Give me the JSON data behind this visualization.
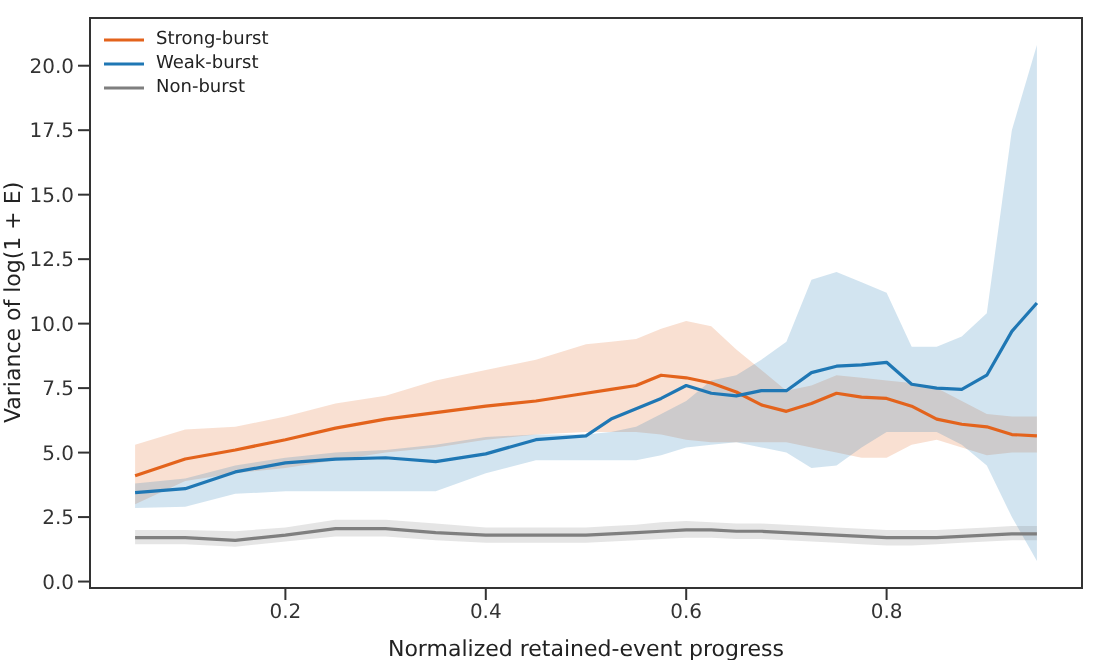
{
  "chart_data": {
    "type": "line",
    "xlabel": "Normalized retained-event progress",
    "ylabel": "Variance of log(1 + E)",
    "x": [
      0.05,
      0.1,
      0.15,
      0.2,
      0.25,
      0.3,
      0.35,
      0.4,
      0.45,
      0.5,
      0.525,
      0.55,
      0.575,
      0.6,
      0.625,
      0.65,
      0.675,
      0.7,
      0.725,
      0.75,
      0.775,
      0.8,
      0.825,
      0.85,
      0.875,
      0.9,
      0.925,
      0.95
    ],
    "series": [
      {
        "name": "Strong-burst",
        "color": "#e3631c",
        "values": [
          4.1,
          4.75,
          5.1,
          5.5,
          5.95,
          6.3,
          6.55,
          6.8,
          7.0,
          7.3,
          7.45,
          7.6,
          8.0,
          7.9,
          7.7,
          7.35,
          6.85,
          6.6,
          6.9,
          7.3,
          7.15,
          7.1,
          6.8,
          6.3,
          6.1,
          6.0,
          5.7,
          5.65
        ],
        "lower": [
          3.0,
          3.9,
          4.2,
          4.4,
          4.7,
          5.0,
          5.2,
          5.5,
          5.7,
          5.8,
          5.8,
          5.8,
          5.7,
          5.5,
          5.4,
          5.4,
          5.4,
          5.4,
          5.2,
          5.0,
          4.8,
          4.8,
          5.3,
          5.5,
          5.2,
          4.9,
          5.0,
          5.0
        ],
        "upper": [
          5.3,
          5.9,
          6.0,
          6.4,
          6.9,
          7.2,
          7.8,
          8.2,
          8.6,
          9.2,
          9.3,
          9.4,
          9.8,
          10.1,
          9.9,
          9.0,
          8.2,
          7.4,
          7.6,
          8.0,
          7.9,
          7.8,
          7.7,
          7.5,
          7.0,
          6.5,
          6.4,
          6.4
        ]
      },
      {
        "name": "Weak-burst",
        "color": "#1f77b4",
        "values": [
          3.45,
          3.6,
          4.25,
          4.6,
          4.75,
          4.8,
          4.65,
          4.95,
          5.5,
          5.65,
          6.3,
          6.7,
          7.1,
          7.6,
          7.3,
          7.2,
          7.4,
          7.4,
          8.1,
          8.35,
          8.4,
          8.5,
          7.65,
          7.5,
          7.45,
          8.0,
          9.7,
          10.8
        ],
        "lower": [
          2.85,
          2.9,
          3.4,
          3.5,
          3.5,
          3.5,
          3.5,
          4.2,
          4.7,
          4.7,
          4.7,
          4.7,
          4.9,
          5.2,
          5.3,
          5.4,
          5.2,
          5.0,
          4.4,
          4.5,
          5.2,
          5.8,
          5.8,
          5.8,
          5.3,
          4.5,
          2.5,
          0.8
        ],
        "upper": [
          3.8,
          4.0,
          4.5,
          4.8,
          5.0,
          5.1,
          5.3,
          5.6,
          5.7,
          5.7,
          5.8,
          6.0,
          6.5,
          7.0,
          7.8,
          8.0,
          8.6,
          9.3,
          11.7,
          12.0,
          11.6,
          11.2,
          9.1,
          9.1,
          9.5,
          10.4,
          17.5,
          20.8
        ]
      },
      {
        "name": "Non-burst",
        "color": "#7f7f7f",
        "values": [
          1.7,
          1.7,
          1.6,
          1.8,
          2.05,
          2.05,
          1.9,
          1.8,
          1.8,
          1.8,
          1.85,
          1.9,
          1.95,
          2.0,
          2.0,
          1.95,
          1.95,
          1.9,
          1.85,
          1.8,
          1.75,
          1.7,
          1.7,
          1.7,
          1.75,
          1.8,
          1.85,
          1.85
        ],
        "lower": [
          1.45,
          1.45,
          1.35,
          1.55,
          1.75,
          1.75,
          1.6,
          1.5,
          1.5,
          1.5,
          1.55,
          1.6,
          1.65,
          1.7,
          1.7,
          1.65,
          1.65,
          1.6,
          1.55,
          1.5,
          1.45,
          1.4,
          1.4,
          1.45,
          1.5,
          1.55,
          1.6,
          1.6
        ],
        "upper": [
          2.0,
          2.0,
          1.95,
          2.1,
          2.4,
          2.4,
          2.25,
          2.1,
          2.1,
          2.1,
          2.15,
          2.2,
          2.3,
          2.35,
          2.3,
          2.25,
          2.25,
          2.2,
          2.15,
          2.1,
          2.05,
          2.0,
          2.0,
          2.0,
          2.05,
          2.1,
          2.15,
          2.15
        ]
      }
    ],
    "xlim": [
      0.005,
      0.995
    ],
    "xticks": [
      0.2,
      0.4,
      0.6,
      0.8
    ],
    "ylim": [
      -0.25,
      21.85
    ],
    "yticks": [
      {
        "value": 0,
        "label": "0.0"
      },
      {
        "value": 2.5,
        "label": "2.5"
      },
      {
        "value": 5,
        "label": "5.0"
      },
      {
        "value": 7.5,
        "label": "7.5"
      },
      {
        "value": 10,
        "label": "10.0"
      },
      {
        "value": 12.5,
        "label": "12.5"
      },
      {
        "value": 15,
        "label": "15.0"
      },
      {
        "value": 17.5,
        "label": "17.5"
      },
      {
        "value": 20,
        "label": "20.0"
      }
    ],
    "legend": "top left",
    "grid": false,
    "line_style": "solid"
  }
}
